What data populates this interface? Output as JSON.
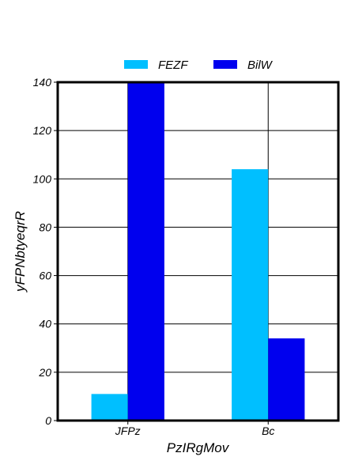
{
  "chart_data": {
    "type": "bar",
    "categories": [
      "JFPz",
      "Bc"
    ],
    "series": [
      {
        "name": "FEZF",
        "values": [
          11,
          104
        ],
        "color": "#00bfff"
      },
      {
        "name": "BilW",
        "values": [
          140,
          34
        ],
        "color": "#0000ee"
      }
    ],
    "title": "",
    "xlabel": "PzIRgMov",
    "ylabel": "yFPNbtyeqrR",
    "ylim": [
      0,
      140
    ],
    "yticks": [
      0,
      20,
      40,
      60,
      80,
      100,
      120,
      140
    ],
    "grid": true,
    "legend_position": "top-center"
  }
}
